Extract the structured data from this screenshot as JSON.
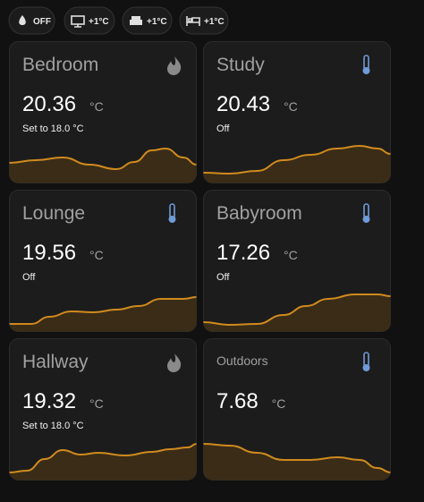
{
  "chips": [
    {
      "label": "OFF"
    },
    {
      "label": "+1°C"
    },
    {
      "label": "+1°C"
    },
    {
      "label": "+1°C"
    }
  ],
  "cards": [
    {
      "name": "Bedroom",
      "value": "20.36",
      "unit": "°C",
      "status": "Set to 18.0 °C"
    },
    {
      "name": "Study",
      "value": "20.43",
      "unit": "°C",
      "status": "Off"
    },
    {
      "name": "Lounge",
      "value": "19.56",
      "unit": "°C",
      "status": "Off"
    },
    {
      "name": "Babyroom",
      "value": "17.26",
      "unit": "°C",
      "status": "Off"
    },
    {
      "name": "Hallway",
      "value": "19.32",
      "unit": "°C",
      "status": "Set to 18.0 °C"
    },
    {
      "name": "Outdoors",
      "value": "7.68",
      "unit": "°C"
    }
  ]
}
